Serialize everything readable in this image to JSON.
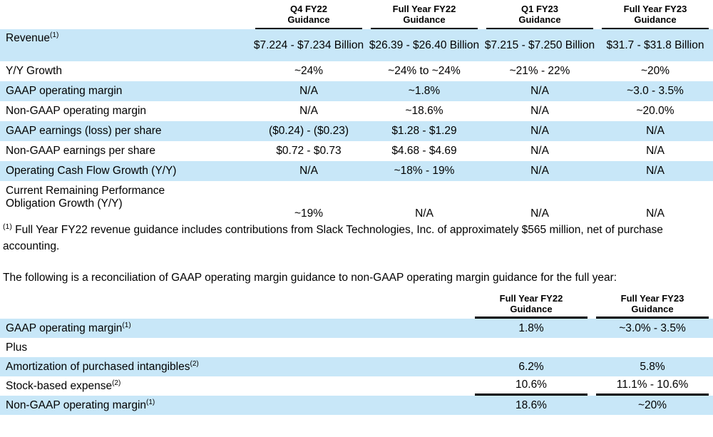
{
  "colors": {
    "row_highlight": "#c8e7f8",
    "rule": "#000000",
    "text": "#000000"
  },
  "guidance_table": {
    "column_headers": [
      {
        "line1": "Q4 FY22",
        "line2": "Guidance"
      },
      {
        "line1": "Full Year FY22",
        "line2": "Guidance"
      },
      {
        "line1": "Q1 FY23",
        "line2": "Guidance"
      },
      {
        "line1": "Full Year FY23",
        "line2": "Guidance"
      }
    ],
    "rows": [
      {
        "label": "Revenue",
        "sup": "(1)",
        "cells": [
          "$7.224 - $7.234 Billion",
          "$26.39 - $26.40 Billion",
          "$7.215 - $7.250 Billion",
          "$31.7 - $31.8 Billion"
        ]
      },
      {
        "label": "Y/Y Growth",
        "sup": "",
        "cells": [
          "~24%",
          "~24% to ~24%",
          "~21% - 22%",
          "~20%"
        ]
      },
      {
        "label": "GAAP operating margin",
        "sup": "",
        "cells": [
          "N/A",
          "~1.8%",
          "N/A",
          "~3.0 - 3.5%"
        ]
      },
      {
        "label": "Non-GAAP operating margin",
        "sup": "",
        "cells": [
          "N/A",
          "~18.6%",
          "N/A",
          "~20.0%"
        ]
      },
      {
        "label": "GAAP earnings (loss) per share",
        "sup": "",
        "cells": [
          "($0.24) - ($0.23)",
          "$1.28 - $1.29",
          "N/A",
          "N/A"
        ]
      },
      {
        "label": "Non-GAAP earnings per share",
        "sup": "",
        "cells": [
          "$0.72 - $0.73",
          "$4.68 - $4.69",
          "N/A",
          "N/A"
        ]
      },
      {
        "label": "Operating Cash Flow Growth (Y/Y)",
        "sup": "",
        "cells": [
          "N/A",
          "~18% - 19%",
          "N/A",
          "N/A"
        ]
      },
      {
        "label": "Current Remaining Performance Obligation Growth (Y/Y)",
        "sup": "",
        "cells": [
          "~19%",
          "N/A",
          "N/A",
          "N/A"
        ]
      }
    ],
    "footnote": {
      "sup": "(1)",
      "text": " Full Year FY22 revenue guidance includes contributions from Slack Technologies, Inc. of approximately $565 million, net of purchase accounting."
    }
  },
  "paragraph": "The following is a reconciliation of GAAP operating margin guidance to non-GAAP operating margin guidance for the full year:",
  "reconciliation_table": {
    "column_headers": [
      {
        "line1": "Full Year FY22",
        "line2": "Guidance"
      },
      {
        "line1": "Full Year FY23",
        "line2": "Guidance"
      }
    ],
    "rows": [
      {
        "label": "GAAP operating margin",
        "sup": "(1)",
        "cells": [
          "1.8%",
          "~3.0% - 3.5%"
        ]
      },
      {
        "label": "Plus",
        "sup": "",
        "cells": [
          "",
          ""
        ]
      },
      {
        "label": "Amortization of purchased intangibles",
        "sup": "(2)",
        "cells": [
          "6.2%",
          "5.8%"
        ]
      },
      {
        "label": "Stock-based expense",
        "sup": "(2)",
        "cells": [
          "10.6%",
          "11.1% - 10.6%"
        ]
      },
      {
        "label": "Non-GAAP operating margin",
        "sup": "(1)",
        "cells": [
          "18.6%",
          "~20%"
        ]
      }
    ]
  }
}
